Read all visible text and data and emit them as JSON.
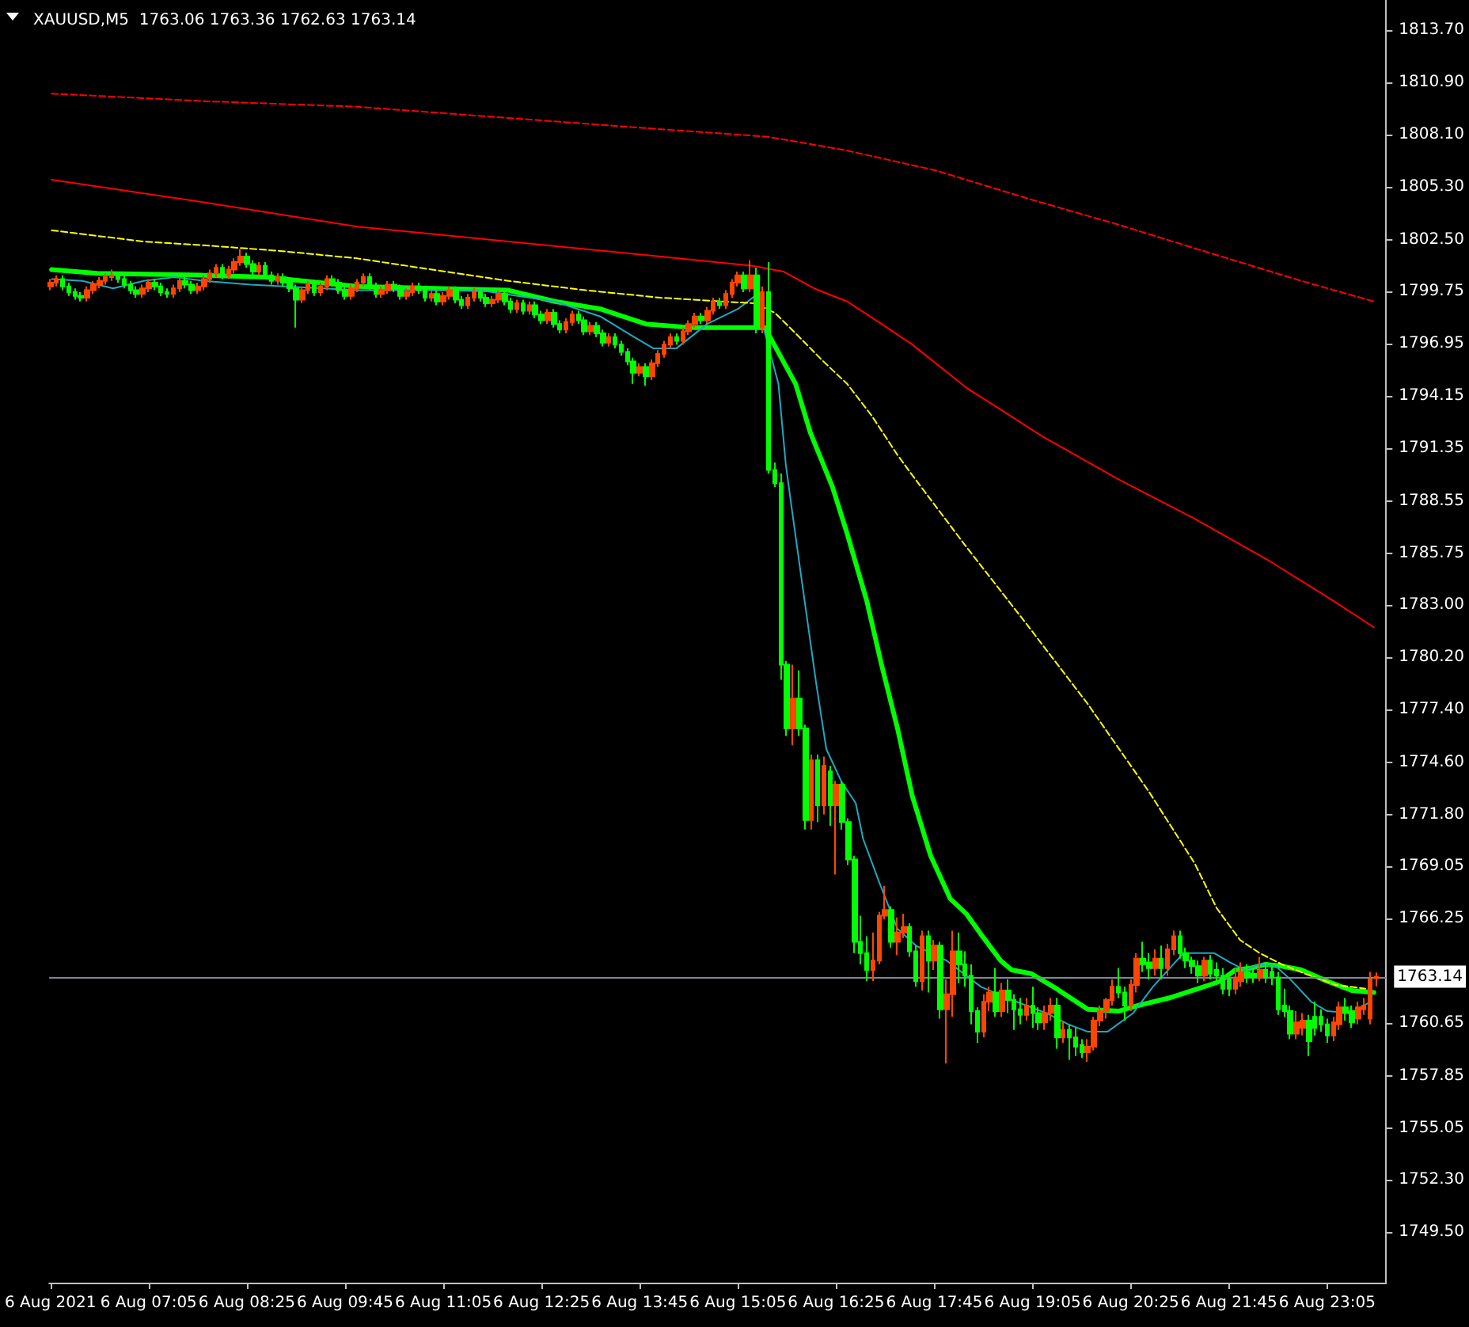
{
  "chart_data": {
    "type": "candlestick",
    "title": "XAUUSD,M5  1763.06 1763.36 1762.63 1763.14",
    "marker": "none",
    "grid": false,
    "xlim": [
      "2021-08-06T05:44",
      "2021-08-06T23:53"
    ],
    "xticks": [
      {
        "value": "2021-08-06T05:45",
        "label": "6 Aug 2021"
      },
      {
        "value": "2021-08-06T07:05",
        "label": "6 Aug 07:05"
      },
      {
        "value": "2021-08-06T08:25",
        "label": "6 Aug 08:25"
      },
      {
        "value": "2021-08-06T09:45",
        "label": "6 Aug 09:45"
      },
      {
        "value": "2021-08-06T11:05",
        "label": "6 Aug 11:05"
      },
      {
        "value": "2021-08-06T12:25",
        "label": "6 Aug 12:25"
      },
      {
        "value": "2021-08-06T13:45",
        "label": "6 Aug 13:45"
      },
      {
        "value": "2021-08-06T15:05",
        "label": "6 Aug 15:05"
      },
      {
        "value": "2021-08-06T16:25",
        "label": "6 Aug 16:25"
      },
      {
        "value": "2021-08-06T17:45",
        "label": "6 Aug 17:45"
      },
      {
        "value": "2021-08-06T19:05",
        "label": "6 Aug 19:05"
      },
      {
        "value": "2021-08-06T20:25",
        "label": "6 Aug 20:25"
      },
      {
        "value": "2021-08-06T21:45",
        "label": "6 Aug 21:45"
      },
      {
        "value": "2021-08-06T23:05",
        "label": "6 Aug 23:05"
      }
    ],
    "ylim": [
      1746.8,
      1815.3
    ],
    "yticks": [
      {
        "value": 1813.7,
        "label": "1813.70"
      },
      {
        "value": 1810.9,
        "label": "1810.90"
      },
      {
        "value": 1808.1,
        "label": "1808.10"
      },
      {
        "value": 1805.3,
        "label": "1805.30"
      },
      {
        "value": 1802.5,
        "label": "1802.50"
      },
      {
        "value": 1799.75,
        "label": "1799.75"
      },
      {
        "value": 1796.95,
        "label": "1796.95"
      },
      {
        "value": 1794.15,
        "label": "1794.15"
      },
      {
        "value": 1791.35,
        "label": "1791.35"
      },
      {
        "value": 1788.55,
        "label": "1788.55"
      },
      {
        "value": 1785.75,
        "label": "1785.75"
      },
      {
        "value": 1783,
        "label": "1783.00"
      },
      {
        "value": 1780.2,
        "label": "1780.20"
      },
      {
        "value": 1777.4,
        "label": "1777.40"
      },
      {
        "value": 1774.6,
        "label": "1774.60"
      },
      {
        "value": 1771.8,
        "label": "1771.80"
      },
      {
        "value": 1769.05,
        "label": "1769.05"
      },
      {
        "value": 1766.25,
        "label": "1766.25"
      },
      {
        "value": 1760.65,
        "label": "1760.65"
      },
      {
        "value": 1757.85,
        "label": "1757.85"
      },
      {
        "value": 1755.05,
        "label": "1755.05"
      },
      {
        "value": 1752.3,
        "label": "1752.30"
      },
      {
        "value": 1749.5,
        "label": "1749.50"
      }
    ],
    "ref_lines": [
      {
        "axis": "y",
        "value": 1763.14,
        "label": "1763.14",
        "color": "#7a8a99"
      }
    ],
    "x": [
      "2021-08-06T05:45",
      "2021-08-06T05:50",
      "2021-08-06T05:55",
      "2021-08-06T06:00",
      "2021-08-06T06:05",
      "2021-08-06T06:10",
      "2021-08-06T06:15",
      "2021-08-06T06:20",
      "2021-08-06T06:25",
      "2021-08-06T06:30",
      "2021-08-06T06:35",
      "2021-08-06T06:40",
      "2021-08-06T06:45",
      "2021-08-06T06:50",
      "2021-08-06T06:55",
      "2021-08-06T07:00",
      "2021-08-06T07:05",
      "2021-08-06T07:10",
      "2021-08-06T07:15",
      "2021-08-06T07:20",
      "2021-08-06T07:25",
      "2021-08-06T07:30",
      "2021-08-06T07:35",
      "2021-08-06T07:40",
      "2021-08-06T07:45",
      "2021-08-06T07:50",
      "2021-08-06T07:55",
      "2021-08-06T08:00",
      "2021-08-06T08:05",
      "2021-08-06T08:10",
      "2021-08-06T08:15",
      "2021-08-06T08:20",
      "2021-08-06T08:25",
      "2021-08-06T08:30",
      "2021-08-06T08:35",
      "2021-08-06T08:40",
      "2021-08-06T08:45",
      "2021-08-06T08:50",
      "2021-08-06T08:55",
      "2021-08-06T09:00",
      "2021-08-06T09:05",
      "2021-08-06T09:10",
      "2021-08-06T09:15",
      "2021-08-06T09:20",
      "2021-08-06T09:25",
      "2021-08-06T09:30",
      "2021-08-06T09:35",
      "2021-08-06T09:40",
      "2021-08-06T09:45",
      "2021-08-06T09:50",
      "2021-08-06T09:55",
      "2021-08-06T10:00",
      "2021-08-06T10:05",
      "2021-08-06T10:10",
      "2021-08-06T10:15",
      "2021-08-06T10:20",
      "2021-08-06T10:25",
      "2021-08-06T10:30",
      "2021-08-06T10:35",
      "2021-08-06T10:40",
      "2021-08-06T10:45",
      "2021-08-06T10:50",
      "2021-08-06T10:55",
      "2021-08-06T11:00",
      "2021-08-06T11:05",
      "2021-08-06T11:10",
      "2021-08-06T11:15",
      "2021-08-06T11:20",
      "2021-08-06T11:25",
      "2021-08-06T11:30",
      "2021-08-06T11:35",
      "2021-08-06T11:40",
      "2021-08-06T11:45",
      "2021-08-06T11:50",
      "2021-08-06T11:55",
      "2021-08-06T12:00",
      "2021-08-06T12:05",
      "2021-08-06T12:10",
      "2021-08-06T12:15",
      "2021-08-06T12:20",
      "2021-08-06T12:25",
      "2021-08-06T12:30",
      "2021-08-06T12:35",
      "2021-08-06T12:40",
      "2021-08-06T12:45",
      "2021-08-06T12:50",
      "2021-08-06T12:55",
      "2021-08-06T13:00",
      "2021-08-06T13:05",
      "2021-08-06T13:10",
      "2021-08-06T13:15",
      "2021-08-06T13:20",
      "2021-08-06T13:25",
      "2021-08-06T13:30",
      "2021-08-06T13:35",
      "2021-08-06T13:40",
      "2021-08-06T13:45",
      "2021-08-06T13:50",
      "2021-08-06T13:55",
      "2021-08-06T14:00",
      "2021-08-06T14:05",
      "2021-08-06T14:10",
      "2021-08-06T14:15",
      "2021-08-06T14:20",
      "2021-08-06T14:25",
      "2021-08-06T14:30",
      "2021-08-06T14:35",
      "2021-08-06T14:40",
      "2021-08-06T14:45",
      "2021-08-06T14:50",
      "2021-08-06T14:55",
      "2021-08-06T15:00",
      "2021-08-06T15:05",
      "2021-08-06T15:10",
      "2021-08-06T15:15",
      "2021-08-06T15:20",
      "2021-08-06T15:25",
      "2021-08-06T15:30",
      "2021-08-06T15:35",
      "2021-08-06T15:40",
      "2021-08-06T15:45",
      "2021-08-06T15:50",
      "2021-08-06T15:55",
      "2021-08-06T16:00",
      "2021-08-06T16:05",
      "2021-08-06T16:10",
      "2021-08-06T16:15",
      "2021-08-06T16:20",
      "2021-08-06T16:25",
      "2021-08-06T16:30",
      "2021-08-06T16:35",
      "2021-08-06T16:40",
      "2021-08-06T16:45",
      "2021-08-06T16:50",
      "2021-08-06T16:55",
      "2021-08-06T17:00",
      "2021-08-06T17:05",
      "2021-08-06T17:10",
      "2021-08-06T17:15",
      "2021-08-06T17:20",
      "2021-08-06T17:25",
      "2021-08-06T17:30",
      "2021-08-06T17:35",
      "2021-08-06T17:40",
      "2021-08-06T17:45",
      "2021-08-06T17:50",
      "2021-08-06T17:55",
      "2021-08-06T18:00",
      "2021-08-06T18:05",
      "2021-08-06T18:10",
      "2021-08-06T18:15",
      "2021-08-06T18:20",
      "2021-08-06T18:25",
      "2021-08-06T18:30",
      "2021-08-06T18:35",
      "2021-08-06T18:40",
      "2021-08-06T18:45",
      "2021-08-06T18:50",
      "2021-08-06T18:55",
      "2021-08-06T19:00",
      "2021-08-06T19:05",
      "2021-08-06T19:10",
      "2021-08-06T19:15",
      "2021-08-06T19:20",
      "2021-08-06T19:25",
      "2021-08-06T19:30",
      "2021-08-06T19:35",
      "2021-08-06T19:40",
      "2021-08-06T19:45",
      "2021-08-06T19:50",
      "2021-08-06T19:55",
      "2021-08-06T20:00",
      "2021-08-06T20:05",
      "2021-08-06T20:10",
      "2021-08-06T20:15",
      "2021-08-06T20:20",
      "2021-08-06T20:25",
      "2021-08-06T20:30",
      "2021-08-06T20:35",
      "2021-08-06T20:40",
      "2021-08-06T20:45",
      "2021-08-06T20:50",
      "2021-08-06T20:55",
      "2021-08-06T21:00",
      "2021-08-06T21:05",
      "2021-08-06T21:10",
      "2021-08-06T21:15",
      "2021-08-06T21:20",
      "2021-08-06T21:25",
      "2021-08-06T21:30",
      "2021-08-06T21:35",
      "2021-08-06T21:40",
      "2021-08-06T21:45",
      "2021-08-06T21:50",
      "2021-08-06T21:55",
      "2021-08-06T22:00",
      "2021-08-06T22:05",
      "2021-08-06T22:10",
      "2021-08-06T22:15",
      "2021-08-06T22:20",
      "2021-08-06T22:25",
      "2021-08-06T22:30",
      "2021-08-06T22:35",
      "2021-08-06T22:40",
      "2021-08-06T22:45",
      "2021-08-06T22:50",
      "2021-08-06T22:55",
      "2021-08-06T23:00",
      "2021-08-06T23:05",
      "2021-08-06T23:10",
      "2021-08-06T23:15",
      "2021-08-06T23:20",
      "2021-08-06T23:25",
      "2021-08-06T23:30",
      "2021-08-06T23:35",
      "2021-08-06T23:40",
      "2021-08-06T23:45"
    ],
    "ohlc": [
      [
        1800.0,
        1800.4,
        1799.8,
        1800.2
      ],
      [
        1800.2,
        1800.6,
        1800.0,
        1800.4
      ],
      [
        1800.4,
        1800.6,
        1799.8,
        1800.0
      ],
      [
        1800.0,
        1800.2,
        1799.5,
        1799.7
      ],
      [
        1799.7,
        1799.9,
        1799.3,
        1799.5
      ],
      [
        1799.5,
        1799.7,
        1799.2,
        1799.4
      ],
      [
        1799.4,
        1800.0,
        1799.2,
        1799.8
      ],
      [
        1799.8,
        1800.3,
        1799.6,
        1800.1
      ],
      [
        1800.1,
        1800.5,
        1799.9,
        1800.3
      ],
      [
        1800.3,
        1800.7,
        1800.1,
        1800.5
      ],
      [
        1800.5,
        1800.9,
        1800.3,
        1800.6
      ],
      [
        1800.6,
        1800.8,
        1800.2,
        1800.4
      ],
      [
        1800.4,
        1800.6,
        1799.9,
        1800.1
      ],
      [
        1800.1,
        1800.3,
        1799.6,
        1799.8
      ],
      [
        1799.8,
        1800.0,
        1799.4,
        1799.6
      ],
      [
        1799.6,
        1800.1,
        1799.4,
        1799.9
      ],
      [
        1799.9,
        1800.4,
        1799.7,
        1800.2
      ],
      [
        1800.2,
        1800.4,
        1799.8,
        1800.0
      ],
      [
        1800.0,
        1800.2,
        1799.5,
        1799.7
      ],
      [
        1799.7,
        1799.9,
        1799.4,
        1799.6
      ],
      [
        1799.6,
        1800.1,
        1799.4,
        1799.9
      ],
      [
        1799.9,
        1800.5,
        1799.7,
        1800.3
      ],
      [
        1800.3,
        1800.5,
        1799.9,
        1800.1
      ],
      [
        1800.1,
        1800.3,
        1799.6,
        1799.8
      ],
      [
        1799.8,
        1800.2,
        1799.6,
        1800.0
      ],
      [
        1800.0,
        1800.6,
        1799.8,
        1800.4
      ],
      [
        1800.4,
        1800.9,
        1800.2,
        1800.7
      ],
      [
        1800.7,
        1801.2,
        1800.5,
        1801.0
      ],
      [
        1801.0,
        1801.2,
        1800.4,
        1800.6
      ],
      [
        1800.6,
        1801.1,
        1800.4,
        1800.9
      ],
      [
        1800.9,
        1801.5,
        1800.7,
        1801.3
      ],
      [
        1801.3,
        1802.0,
        1801.1,
        1801.6
      ],
      [
        1801.6,
        1801.8,
        1801.0,
        1801.2
      ],
      [
        1801.2,
        1801.4,
        1800.6,
        1800.8
      ],
      [
        1800.8,
        1801.3,
        1800.6,
        1801.1
      ],
      [
        1801.1,
        1801.3,
        1800.4,
        1800.6
      ],
      [
        1800.6,
        1800.8,
        1800.1,
        1800.3
      ],
      [
        1800.3,
        1800.7,
        1800.1,
        1800.5
      ],
      [
        1800.5,
        1800.7,
        1800.0,
        1800.2
      ],
      [
        1800.2,
        1800.4,
        1799.7,
        1799.9
      ],
      [
        1799.9,
        1800.1,
        1797.8,
        1799.3
      ],
      [
        1799.3,
        1800.0,
        1799.1,
        1799.8
      ],
      [
        1799.8,
        1800.3,
        1799.6,
        1800.1
      ],
      [
        1800.1,
        1800.3,
        1799.5,
        1799.7
      ],
      [
        1799.7,
        1800.2,
        1799.5,
        1800.0
      ],
      [
        1800.0,
        1800.6,
        1799.8,
        1800.4
      ],
      [
        1800.4,
        1800.6,
        1800.0,
        1800.2
      ],
      [
        1800.2,
        1800.4,
        1799.6,
        1799.8
      ],
      [
        1799.8,
        1800.0,
        1799.3,
        1799.5
      ],
      [
        1799.5,
        1800.1,
        1799.3,
        1799.9
      ],
      [
        1799.9,
        1800.4,
        1799.7,
        1800.2
      ],
      [
        1800.2,
        1800.7,
        1800.0,
        1800.5
      ],
      [
        1800.5,
        1800.7,
        1799.8,
        1800.0
      ],
      [
        1800.0,
        1800.2,
        1799.4,
        1799.6
      ],
      [
        1799.6,
        1800.0,
        1799.4,
        1799.8
      ],
      [
        1799.8,
        1800.3,
        1799.6,
        1800.1
      ],
      [
        1800.1,
        1800.3,
        1799.7,
        1799.9
      ],
      [
        1799.9,
        1800.1,
        1799.3,
        1799.5
      ],
      [
        1799.5,
        1799.9,
        1799.3,
        1799.7
      ],
      [
        1799.7,
        1800.2,
        1799.5,
        1800.0
      ],
      [
        1800.0,
        1800.2,
        1799.6,
        1799.8
      ],
      [
        1799.8,
        1800.0,
        1799.2,
        1799.4
      ],
      [
        1799.4,
        1799.8,
        1799.2,
        1799.6
      ],
      [
        1799.6,
        1799.8,
        1799.0,
        1799.2
      ],
      [
        1799.2,
        1799.7,
        1799.0,
        1799.5
      ],
      [
        1799.5,
        1800.0,
        1799.3,
        1799.8
      ],
      [
        1799.8,
        1800.0,
        1799.1,
        1799.3
      ],
      [
        1799.3,
        1799.5,
        1798.8,
        1799.0
      ],
      [
        1799.0,
        1799.6,
        1798.8,
        1799.4
      ],
      [
        1799.4,
        1799.9,
        1799.2,
        1799.7
      ],
      [
        1799.7,
        1799.9,
        1799.2,
        1799.4
      ],
      [
        1799.4,
        1799.6,
        1798.9,
        1799.1
      ],
      [
        1799.1,
        1799.5,
        1798.9,
        1799.3
      ],
      [
        1799.3,
        1799.8,
        1799.1,
        1799.6
      ],
      [
        1799.6,
        1799.8,
        1799.0,
        1799.2
      ],
      [
        1799.2,
        1799.4,
        1798.6,
        1798.8
      ],
      [
        1798.8,
        1799.3,
        1798.6,
        1799.1
      ],
      [
        1799.1,
        1799.3,
        1798.5,
        1798.7
      ],
      [
        1798.7,
        1799.2,
        1798.5,
        1799.0
      ],
      [
        1799.0,
        1799.2,
        1798.3,
        1798.5
      ],
      [
        1798.5,
        1798.7,
        1798.0,
        1798.2
      ],
      [
        1798.2,
        1798.8,
        1798.0,
        1798.6
      ],
      [
        1798.6,
        1798.8,
        1797.8,
        1798.0
      ],
      [
        1798.0,
        1798.2,
        1797.5,
        1797.7
      ],
      [
        1797.7,
        1798.3,
        1797.5,
        1798.1
      ],
      [
        1798.1,
        1798.7,
        1797.9,
        1798.5
      ],
      [
        1798.5,
        1798.7,
        1798.0,
        1798.2
      ],
      [
        1798.2,
        1798.4,
        1797.4,
        1797.6
      ],
      [
        1797.6,
        1798.1,
        1797.4,
        1797.9
      ],
      [
        1797.9,
        1798.1,
        1797.3,
        1797.5
      ],
      [
        1797.5,
        1797.7,
        1796.8,
        1797.0
      ],
      [
        1797.0,
        1797.5,
        1796.8,
        1797.3
      ],
      [
        1797.3,
        1797.5,
        1796.7,
        1796.9
      ],
      [
        1796.9,
        1797.1,
        1796.3,
        1796.5
      ],
      [
        1796.5,
        1796.7,
        1795.8,
        1796.0
      ],
      [
        1796.0,
        1796.2,
        1794.8,
        1795.4
      ],
      [
        1795.4,
        1795.9,
        1795.2,
        1795.7
      ],
      [
        1795.7,
        1795.9,
        1794.7,
        1795.2
      ],
      [
        1795.2,
        1796.1,
        1795.0,
        1795.9
      ],
      [
        1795.9,
        1796.6,
        1795.7,
        1796.4
      ],
      [
        1796.4,
        1797.1,
        1796.2,
        1796.9
      ],
      [
        1796.9,
        1797.5,
        1796.7,
        1797.3
      ],
      [
        1797.3,
        1797.5,
        1796.9,
        1797.1
      ],
      [
        1797.1,
        1797.8,
        1796.9,
        1797.6
      ],
      [
        1797.6,
        1798.2,
        1797.4,
        1798.0
      ],
      [
        1798.0,
        1798.6,
        1797.8,
        1798.4
      ],
      [
        1798.4,
        1798.6,
        1798.0,
        1798.2
      ],
      [
        1798.2,
        1798.9,
        1798.0,
        1798.7
      ],
      [
        1798.7,
        1799.4,
        1798.5,
        1799.2
      ],
      [
        1799.2,
        1799.4,
        1798.8,
        1799.0
      ],
      [
        1799.0,
        1799.8,
        1798.8,
        1799.6
      ],
      [
        1799.6,
        1800.4,
        1799.4,
        1800.2
      ],
      [
        1800.2,
        1800.8,
        1800.0,
        1800.6
      ],
      [
        1800.6,
        1800.8,
        1799.7,
        1799.9
      ],
      [
        1799.9,
        1801.4,
        1799.7,
        1800.6
      ],
      [
        1800.6,
        1801.0,
        1797.5,
        1797.8
      ],
      [
        1797.8,
        1800.0,
        1797.5,
        1799.7
      ],
      [
        1799.7,
        1801.3,
        1790.0,
        1790.2
      ],
      [
        1790.2,
        1790.6,
        1789.3,
        1789.5
      ],
      [
        1789.5,
        1790.0,
        1779.0,
        1779.8
      ],
      [
        1779.8,
        1780.0,
        1776.0,
        1776.4
      ],
      [
        1776.4,
        1779.8,
        1775.5,
        1778.0
      ],
      [
        1778.0,
        1779.5,
        1776.0,
        1776.4
      ],
      [
        1776.4,
        1776.6,
        1771.0,
        1771.5
      ],
      [
        1771.5,
        1775.0,
        1771.0,
        1774.7
      ],
      [
        1774.7,
        1775.0,
        1771.4,
        1772.3
      ],
      [
        1772.3,
        1774.9,
        1771.8,
        1774.4
      ],
      [
        1774.1,
        1774.4,
        1771.2,
        1772.3
      ],
      [
        1772.3,
        1773.6,
        1768.6,
        1773.4
      ],
      [
        1773.4,
        1773.6,
        1771.0,
        1771.4
      ],
      [
        1771.4,
        1771.6,
        1769.1,
        1769.4
      ],
      [
        1769.4,
        1769.6,
        1764.4,
        1765.0
      ],
      [
        1765.0,
        1766.4,
        1763.8,
        1764.4
      ],
      [
        1764.4,
        1765.3,
        1762.9,
        1763.5
      ],
      [
        1763.5,
        1765.5,
        1762.9,
        1764.0
      ],
      [
        1764.0,
        1766.6,
        1763.8,
        1766.4
      ],
      [
        1766.4,
        1768.0,
        1766.2,
        1766.7
      ],
      [
        1766.7,
        1766.9,
        1764.7,
        1765.0
      ],
      [
        1765.0,
        1766.3,
        1764.3,
        1765.5
      ],
      [
        1765.5,
        1766.5,
        1765.2,
        1765.8
      ],
      [
        1765.8,
        1766.0,
        1764.2,
        1764.5
      ],
      [
        1764.5,
        1764.8,
        1762.6,
        1762.9
      ],
      [
        1762.9,
        1765.6,
        1762.4,
        1765.3
      ],
      [
        1765.3,
        1765.6,
        1762.3,
        1764.0
      ],
      [
        1764.0,
        1765.1,
        1763.5,
        1764.8
      ],
      [
        1764.8,
        1765.0,
        1760.9,
        1761.4
      ],
      [
        1761.4,
        1763.0,
        1758.5,
        1762.2
      ],
      [
        1762.2,
        1765.6,
        1761.0,
        1764.5
      ],
      [
        1764.5,
        1765.5,
        1762.8,
        1763.8
      ],
      [
        1763.8,
        1764.5,
        1762.6,
        1763.2
      ],
      [
        1763.2,
        1763.8,
        1760.6,
        1761.3
      ],
      [
        1761.3,
        1761.5,
        1759.6,
        1760.2
      ],
      [
        1760.2,
        1762.2,
        1759.9,
        1761.8
      ],
      [
        1761.8,
        1762.6,
        1761.3,
        1762.3
      ],
      [
        1762.3,
        1763.6,
        1761.0,
        1761.3
      ],
      [
        1761.3,
        1762.8,
        1761.0,
        1762.4
      ],
      [
        1762.4,
        1763.0,
        1761.2,
        1761.9
      ],
      [
        1761.9,
        1762.2,
        1760.3,
        1761.4
      ],
      [
        1761.4,
        1762.0,
        1760.6,
        1761.1
      ],
      [
        1761.1,
        1762.0,
        1760.8,
        1761.6
      ],
      [
        1761.6,
        1762.6,
        1760.4,
        1761.2
      ],
      [
        1761.2,
        1761.5,
        1760.3,
        1760.7
      ],
      [
        1760.7,
        1761.6,
        1760.3,
        1761.2
      ],
      [
        1761.2,
        1762.0,
        1760.8,
        1761.6
      ],
      [
        1761.6,
        1762.0,
        1759.3,
        1759.9
      ],
      [
        1759.9,
        1760.8,
        1759.6,
        1760.3
      ],
      [
        1760.3,
        1760.6,
        1758.7,
        1759.9
      ],
      [
        1759.9,
        1760.4,
        1758.9,
        1759.4
      ],
      [
        1759.5,
        1759.8,
        1758.8,
        1759.1
      ],
      [
        1759.1,
        1759.8,
        1758.6,
        1759.4
      ],
      [
        1759.4,
        1761.0,
        1759.2,
        1760.8
      ],
      [
        1760.8,
        1761.6,
        1760.5,
        1761.3
      ],
      [
        1761.3,
        1762.0,
        1760.9,
        1761.9
      ],
      [
        1761.9,
        1763.0,
        1761.6,
        1762.6
      ],
      [
        1762.6,
        1763.6,
        1762.0,
        1762.3
      ],
      [
        1762.3,
        1762.6,
        1760.8,
        1761.6
      ],
      [
        1761.6,
        1763.0,
        1761.3,
        1762.7
      ],
      [
        1762.7,
        1764.4,
        1762.3,
        1764.1
      ],
      [
        1764.1,
        1765.0,
        1763.4,
        1763.8
      ],
      [
        1763.9,
        1764.4,
        1763.0,
        1763.6
      ],
      [
        1763.6,
        1764.6,
        1763.2,
        1764.1
      ],
      [
        1764.1,
        1764.8,
        1763.0,
        1763.6
      ],
      [
        1763.6,
        1764.9,
        1763.2,
        1764.6
      ],
      [
        1764.6,
        1765.6,
        1764.3,
        1765.3
      ],
      [
        1765.3,
        1765.6,
        1764.1,
        1764.4
      ],
      [
        1764.4,
        1764.7,
        1763.6,
        1764.0
      ],
      [
        1764.0,
        1764.2,
        1763.3,
        1763.7
      ],
      [
        1763.7,
        1764.0,
        1762.8,
        1763.2
      ],
      [
        1763.2,
        1764.2,
        1762.9,
        1764.0
      ],
      [
        1764.0,
        1764.3,
        1763.0,
        1763.3
      ],
      [
        1763.5,
        1763.9,
        1762.9,
        1763.2
      ],
      [
        1763.2,
        1763.6,
        1762.2,
        1762.5
      ],
      [
        1763.0,
        1763.3,
        1762.1,
        1762.5
      ],
      [
        1762.5,
        1763.6,
        1762.2,
        1763.1
      ],
      [
        1762.9,
        1763.9,
        1762.6,
        1763.4
      ],
      [
        1763.4,
        1763.8,
        1762.8,
        1763.1
      ],
      [
        1763.3,
        1763.6,
        1762.8,
        1763.1
      ],
      [
        1763.1,
        1764.2,
        1762.9,
        1763.5
      ],
      [
        1763.5,
        1763.9,
        1762.8,
        1763.1
      ],
      [
        1763.4,
        1763.7,
        1762.7,
        1763.1
      ],
      [
        1763.1,
        1763.4,
        1761.1,
        1761.4
      ],
      [
        1761.6,
        1762.5,
        1761.0,
        1761.3
      ],
      [
        1761.3,
        1761.6,
        1759.8,
        1760.1
      ],
      [
        1760.1,
        1761.3,
        1759.8,
        1760.7
      ],
      [
        1760.4,
        1761.2,
        1760.0,
        1760.8
      ],
      [
        1760.8,
        1761.1,
        1758.9,
        1759.7
      ],
      [
        1761.0,
        1761.8,
        1760.0,
        1760.4
      ],
      [
        1761.0,
        1761.4,
        1760.2,
        1760.6
      ],
      [
        1760.6,
        1760.9,
        1759.6,
        1760.0
      ],
      [
        1760.0,
        1761.0,
        1759.7,
        1760.7
      ],
      [
        1760.6,
        1761.8,
        1760.3,
        1761.5
      ],
      [
        1761.5,
        1762.0,
        1760.8,
        1761.2
      ],
      [
        1761.3,
        1761.6,
        1760.4,
        1760.7
      ],
      [
        1760.9,
        1761.8,
        1760.6,
        1761.5
      ],
      [
        1761.4,
        1762.0,
        1761.1,
        1761.6
      ],
      [
        1760.9,
        1763.4,
        1760.6,
        1763.0
      ],
      [
        1763.06,
        1763.36,
        1762.63,
        1763.14
      ]
    ],
    "colors": [
      "#ff4500",
      "#ff4500",
      "#00ff00",
      "#00ff00",
      "#00ff00",
      "#00ff00",
      "#ff4500",
      "#ff4500",
      "#ff4500",
      "#ff4500",
      "#ff4500",
      "#00ff00",
      "#00ff00",
      "#00ff00",
      "#00ff00",
      "#ff4500",
      "#ff4500",
      "#00ff00",
      "#00ff00",
      "#00ff00",
      "#ff4500",
      "#ff4500",
      "#00ff00",
      "#00ff00",
      "#ff4500",
      "#ff4500",
      "#ff4500",
      "#ff4500",
      "#00ff00",
      "#ff4500",
      "#ff4500",
      "#ff4500",
      "#00ff00",
      "#00ff00",
      "#ff4500",
      "#00ff00",
      "#00ff00",
      "#ff4500",
      "#00ff00",
      "#00ff00",
      "#00ff00",
      "#ff4500",
      "#ff4500",
      "#00ff00",
      "#ff4500",
      "#ff4500",
      "#00ff00",
      "#00ff00",
      "#00ff00",
      "#ff4500",
      "#ff4500",
      "#ff4500",
      "#00ff00",
      "#00ff00",
      "#ff4500",
      "#ff4500",
      "#00ff00",
      "#00ff00",
      "#ff4500",
      "#ff4500",
      "#00ff00",
      "#00ff00",
      "#ff4500",
      "#00ff00",
      "#ff4500",
      "#ff4500",
      "#00ff00",
      "#00ff00",
      "#ff4500",
      "#ff4500",
      "#00ff00",
      "#00ff00",
      "#ff4500",
      "#ff4500",
      "#00ff00",
      "#00ff00",
      "#ff4500",
      "#00ff00",
      "#ff4500",
      "#00ff00",
      "#00ff00",
      "#ff4500",
      "#00ff00",
      "#00ff00",
      "#ff4500",
      "#ff4500",
      "#00ff00",
      "#00ff00",
      "#ff4500",
      "#00ff00",
      "#00ff00",
      "#ff4500",
      "#00ff00",
      "#00ff00",
      "#00ff00",
      "#00ff00",
      "#ff4500",
      "#00ff00",
      "#ff4500",
      "#ff4500",
      "#ff4500",
      "#ff4500",
      "#00ff00",
      "#ff4500",
      "#ff4500",
      "#ff4500",
      "#00ff00",
      "#ff4500",
      "#ff4500",
      "#00ff00",
      "#ff4500",
      "#ff4500",
      "#ff4500",
      "#00ff00",
      "#ff4500",
      "#00ff00",
      "#ff4500",
      "#00ff00",
      "#00ff00",
      "#00ff00",
      "#00ff00",
      "#ff4500",
      "#00ff00",
      "#00ff00",
      "#ff4500",
      "#00ff00",
      "#ff4500",
      "#00ff00",
      "#ff4500",
      "#00ff00",
      "#00ff00",
      "#00ff00",
      "#00ff00",
      "#00ff00",
      "#ff4500",
      "#ff4500",
      "#ff4500",
      "#00ff00",
      "#ff4500",
      "#ff4500",
      "#00ff00",
      "#00ff00",
      "#ff4500",
      "#00ff00",
      "#ff4500",
      "#00ff00",
      "#ff4500",
      "#ff4500",
      "#00ff00",
      "#00ff00",
      "#00ff00",
      "#00ff00",
      "#ff4500",
      "#ff4500",
      "#00ff00",
      "#ff4500",
      "#00ff00",
      "#00ff00",
      "#00ff00",
      "#ff4500",
      "#00ff00",
      "#00ff00",
      "#ff4500",
      "#ff4500",
      "#00ff00",
      "#ff4500",
      "#00ff00",
      "#00ff00",
      "#00ff00",
      "#ff4500",
      "#ff4500",
      "#ff4500",
      "#ff4500",
      "#ff4500",
      "#00ff00",
      "#00ff00",
      "#ff4500",
      "#ff4500",
      "#00ff00",
      "#00ff00",
      "#ff4500",
      "#00ff00",
      "#ff4500",
      "#ff4500",
      "#00ff00",
      "#00ff00",
      "#00ff00",
      "#00ff00",
      "#ff4500",
      "#00ff00",
      "#00ff00",
      "#00ff00",
      "#00ff00",
      "#ff4500",
      "#ff4500",
      "#00ff00",
      "#00ff00",
      "#ff4500",
      "#00ff00",
      "#00ff00",
      "#00ff00",
      "#00ff00",
      "#00ff00",
      "#ff4500",
      "#ff4500",
      "#00ff00",
      "#00ff00",
      "#00ff00",
      "#00ff00",
      "#ff4500",
      "#ff4500",
      "#00ff00",
      "#00ff00",
      "#ff4500",
      "#ff4500",
      "#ff4500",
      "#ff4500"
    ],
    "series": [
      {
        "type": "line",
        "color": "#00ff00",
        "x": [
          "2021-08-06T05:46",
          "2021-08-06T06:23",
          "2021-08-06T07:50",
          "2021-08-06T08:40",
          "2021-08-06T09:55",
          "2021-08-06T11:58",
          "2021-08-06T12:36",
          "2021-08-06T13:13",
          "2021-08-06T13:50",
          "2021-08-06T14:28",
          "2021-08-06T15:17",
          "2021-08-06T15:27",
          "2021-08-06T15:52",
          "2021-08-06T16:04",
          "2021-08-06T16:22",
          "2021-08-06T16:34",
          "2021-08-06T16:50",
          "2021-08-06T17:02",
          "2021-08-06T17:15",
          "2021-08-06T17:27",
          "2021-08-06T17:42",
          "2021-08-06T17:58",
          "2021-08-06T18:11",
          "2021-08-06T18:23",
          "2021-08-06T18:39",
          "2021-08-06T18:48",
          "2021-08-06T19:04",
          "2021-08-06T19:22",
          "2021-08-06T19:50",
          "2021-08-06T20:15",
          "2021-08-06T20:31",
          "2021-08-06T20:56",
          "2021-08-06T21:20",
          "2021-08-06T21:38",
          "2021-08-06T21:50",
          "2021-08-06T22:03",
          "2021-08-06T22:15",
          "2021-08-06T22:28",
          "2021-08-06T22:44",
          "2021-08-06T23:05",
          "2021-08-06T23:25",
          "2021-08-06T23:43"
        ],
        "values": [
          1800.9,
          1800.7,
          1800.6,
          1800.5,
          1800.0,
          1799.8,
          1799.2,
          1798.8,
          1798.0,
          1797.8,
          1797.8,
          1797.8,
          1794.8,
          1792.2,
          1789.3,
          1786.8,
          1783.2,
          1779.8,
          1776.4,
          1772.8,
          1769.6,
          1767.3,
          1766.5,
          1765.4,
          1764.0,
          1763.5,
          1763.3,
          1762.6,
          1761.4,
          1761.3,
          1761.6,
          1762.0,
          1762.5,
          1762.9,
          1763.5,
          1763.6,
          1763.8,
          1763.7,
          1763.5,
          1762.9,
          1762.4,
          1762.3
        ]
      },
      {
        "type": "line",
        "color": "#20a8c0",
        "x": [
          "2021-08-06T05:46",
          "2021-08-06T06:11",
          "2021-08-06T06:36",
          "2021-08-06T07:01",
          "2021-08-06T07:26",
          "2021-08-06T07:50",
          "2021-08-06T08:28",
          "2021-08-06T09:55",
          "2021-08-06T11:34",
          "2021-08-06T12:36",
          "2021-08-06T13:13",
          "2021-08-06T13:38",
          "2021-08-06T13:56",
          "2021-08-06T14:15",
          "2021-08-06T14:40",
          "2021-08-06T15:05",
          "2021-08-06T15:19",
          "2021-08-06T15:38",
          "2021-08-06T15:44",
          "2021-08-06T15:50",
          "2021-08-06T15:57",
          "2021-08-06T16:03",
          "2021-08-06T16:09",
          "2021-08-06T16:17",
          "2021-08-06T16:29",
          "2021-08-06T16:41",
          "2021-08-06T16:47",
          "2021-08-06T17:00",
          "2021-08-06T17:15",
          "2021-08-06T17:30",
          "2021-08-06T17:55",
          "2021-08-06T18:23",
          "2021-08-06T18:52",
          "2021-08-06T19:16",
          "2021-08-06T19:34",
          "2021-08-06T19:50",
          "2021-08-06T20:06",
          "2021-08-06T20:27",
          "2021-08-06T20:43",
          "2021-08-06T21:01",
          "2021-08-06T21:08",
          "2021-08-06T21:33",
          "2021-08-06T21:46",
          "2021-08-06T21:58",
          "2021-08-06T22:10",
          "2021-08-06T22:23",
          "2021-08-06T22:35",
          "2021-08-06T22:52",
          "2021-08-06T23:05",
          "2021-08-06T23:25",
          "2021-08-06T23:40"
        ],
        "values": [
          1800.4,
          1800.3,
          1799.9,
          1800.3,
          1800.5,
          1800.3,
          1800.1,
          1799.8,
          1799.8,
          1799.2,
          1798.4,
          1797.4,
          1796.7,
          1796.7,
          1798.0,
          1798.8,
          1799.5,
          1794.8,
          1790.5,
          1787.6,
          1784.3,
          1781.5,
          1778.7,
          1775.3,
          1773.6,
          1772.4,
          1770.5,
          1768.2,
          1765.7,
          1764.8,
          1764.0,
          1762.6,
          1761.8,
          1761.2,
          1760.6,
          1760.2,
          1760.2,
          1761.2,
          1762.6,
          1763.9,
          1764.4,
          1764.4,
          1763.9,
          1763.5,
          1763.8,
          1763.7,
          1763.0,
          1761.8,
          1761.3,
          1761.2,
          1761.8
        ]
      },
      {
        "type": "line",
        "color": "#ffff00",
        "line_style": "dashed",
        "x": [
          "2021-08-06T05:46",
          "2021-08-06T07:01",
          "2021-08-06T07:50",
          "2021-08-06T08:52",
          "2021-08-06T09:55",
          "2021-08-06T10:56",
          "2021-08-06T11:58",
          "2021-08-06T13:01",
          "2021-08-06T14:02",
          "2021-08-06T14:52",
          "2021-08-06T15:19",
          "2021-08-06T15:35",
          "2021-08-06T15:52",
          "2021-08-06T16:13",
          "2021-08-06T16:34",
          "2021-08-06T16:54",
          "2021-08-06T17:15",
          "2021-08-06T17:25",
          "2021-08-06T18:11",
          "2021-08-06T19:01",
          "2021-08-06T19:50",
          "2021-08-06T20:40",
          "2021-08-06T21:17",
          "2021-08-06T21:35",
          "2021-08-06T21:54",
          "2021-08-06T22:10",
          "2021-08-06T22:28",
          "2021-08-06T22:47",
          "2021-08-06T23:12",
          "2021-08-06T23:36"
        ],
        "values": [
          1803.0,
          1802.4,
          1802.2,
          1801.9,
          1801.5,
          1800.9,
          1800.3,
          1799.8,
          1799.4,
          1799.2,
          1799.1,
          1798.6,
          1797.5,
          1796.1,
          1794.8,
          1793.1,
          1791.0,
          1790.1,
          1786.1,
          1781.9,
          1777.7,
          1773.0,
          1769.2,
          1766.8,
          1765.1,
          1764.4,
          1763.8,
          1763.3,
          1762.7,
          1762.5
        ]
      },
      {
        "type": "line",
        "color": "#ff0000",
        "x": [
          "2021-08-06T05:46",
          "2021-08-06T07:50",
          "2021-08-06T09:55",
          "2021-08-06T11:58",
          "2021-08-06T14:02",
          "2021-08-06T15:17",
          "2021-08-06T15:42",
          "2021-08-06T16:07",
          "2021-08-06T16:34",
          "2021-08-06T17:02",
          "2021-08-06T17:27",
          "2021-08-06T18:11",
          "2021-08-06T19:13",
          "2021-08-06T20:15",
          "2021-08-06T21:17",
          "2021-08-06T22:19",
          "2021-08-06T23:08",
          "2021-08-06T23:43"
        ],
        "values": [
          1805.7,
          1804.5,
          1803.2,
          1802.4,
          1801.6,
          1801.1,
          1800.8,
          1799.9,
          1799.2,
          1798.0,
          1796.9,
          1794.6,
          1792.0,
          1789.7,
          1787.6,
          1785.3,
          1783.3,
          1781.8
        ]
      },
      {
        "type": "line",
        "color": "#ff0000",
        "line_style": "dashed",
        "x": [
          "2021-08-06T05:46",
          "2021-08-06T07:50",
          "2021-08-06T09:55",
          "2021-08-06T11:58",
          "2021-08-06T14:02",
          "2021-08-06T15:29",
          "2021-08-06T16:31",
          "2021-08-06T17:46",
          "2021-08-06T19:01",
          "2021-08-06T20:15",
          "2021-08-06T21:29",
          "2021-08-06T22:44",
          "2021-08-06T23:43"
        ],
        "values": [
          1810.3,
          1809.9,
          1809.6,
          1809.0,
          1808.4,
          1808.0,
          1807.3,
          1806.2,
          1804.7,
          1803.3,
          1801.8,
          1800.3,
          1799.2
        ]
      }
    ]
  }
}
